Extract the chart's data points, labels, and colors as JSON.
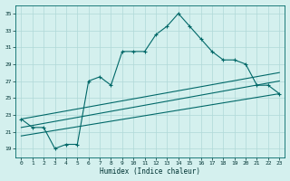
{
  "xlabel": "Humidex (Indice chaleur)",
  "background_color": "#d4f0ee",
  "grid_color": "#b0d8d8",
  "line_color": "#006868",
  "xlim": [
    -0.5,
    23.5
  ],
  "ylim": [
    18,
    36
  ],
  "yticks": [
    19,
    21,
    23,
    25,
    27,
    29,
    31,
    33,
    35
  ],
  "xticks": [
    0,
    1,
    2,
    3,
    4,
    5,
    6,
    7,
    8,
    9,
    10,
    11,
    12,
    13,
    14,
    15,
    16,
    17,
    18,
    19,
    20,
    21,
    22,
    23
  ],
  "main_series": [
    [
      0,
      22.5
    ],
    [
      1,
      21.5
    ],
    [
      2,
      21.5
    ],
    [
      3,
      19.0
    ],
    [
      4,
      19.5
    ],
    [
      5,
      19.5
    ],
    [
      6,
      27.0
    ],
    [
      7,
      27.5
    ],
    [
      8,
      26.5
    ],
    [
      9,
      30.5
    ],
    [
      10,
      30.5
    ],
    [
      11,
      30.5
    ],
    [
      12,
      32.5
    ],
    [
      13,
      33.5
    ],
    [
      14,
      35.0
    ],
    [
      15,
      33.5
    ],
    [
      16,
      32.0
    ],
    [
      17,
      30.5
    ],
    [
      18,
      29.5
    ],
    [
      19,
      29.5
    ],
    [
      20,
      29.0
    ],
    [
      21,
      26.5
    ],
    [
      22,
      26.5
    ],
    [
      23,
      25.5
    ]
  ],
  "line1_series": [
    [
      0,
      22.5
    ],
    [
      23,
      28.0
    ]
  ],
  "line2_series": [
    [
      0,
      21.5
    ],
    [
      23,
      27.0
    ]
  ],
  "line3_series": [
    [
      0,
      20.5
    ],
    [
      23,
      25.5
    ]
  ]
}
